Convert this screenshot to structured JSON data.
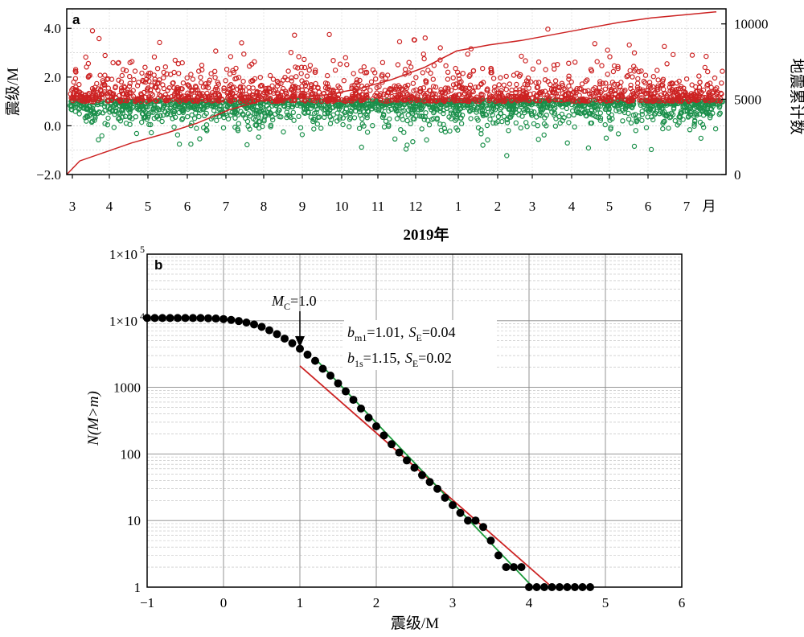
{
  "chart_data": [
    {
      "panel": "a",
      "type": "scatter",
      "xlabel": "2019年",
      "x_tick_labels": [
        "3",
        "4",
        "5",
        "6",
        "7",
        "8",
        "9",
        "10",
        "11",
        "12",
        "1",
        "2",
        "3",
        "4",
        "5",
        "6",
        "7",
        "月"
      ],
      "ylabel_left": "震级/M",
      "ylim_left": [
        -2.0,
        4.8
      ],
      "y_ticks_left": [
        "4.0",
        "2.0",
        "0.0",
        "−2.0"
      ],
      "ylabel_right": "地震累计数",
      "ylim_right": [
        0,
        11000
      ],
      "y_ticks_right": [
        "10000",
        "5000",
        "0"
      ],
      "grid": true,
      "series": [
        {
          "color": "#cc2222",
          "marker": "open-circle",
          "description_range": [
            1.0,
            4.0
          ]
        },
        {
          "color": "#1a8f4a",
          "marker": "open-circle",
          "description_range": [
            -1.6,
            1.0
          ]
        }
      ],
      "cumulative": {
        "color": "#cc2222",
        "x": [
          0,
          0.02,
          0.06,
          0.1,
          0.15,
          0.2,
          0.25,
          0.3,
          0.35,
          0.4,
          0.45,
          0.5,
          0.55,
          0.6,
          0.65,
          0.7,
          0.75,
          0.8,
          0.85,
          0.9,
          0.95,
          1.0
        ],
        "y": [
          0,
          900,
          1500,
          2100,
          2700,
          3400,
          4300,
          4900,
          5100,
          5300,
          5700,
          6300,
          7100,
          8200,
          8600,
          8900,
          9300,
          9700,
          10100,
          10400,
          10600,
          10800
        ]
      }
    },
    {
      "panel": "b",
      "type": "scatter",
      "xlabel": "震级/M",
      "ylabel": "N(M>m)",
      "xlim": [
        -1,
        6
      ],
      "ylim": [
        1,
        100000
      ],
      "yscale": "log",
      "x_ticks": [
        "−1",
        "0",
        "1",
        "2",
        "3",
        "4",
        "5",
        "6"
      ],
      "y_ticks": [
        "1",
        "10",
        "100",
        "1000",
        "1×10",
        "1×10"
      ],
      "y_tick_sups": [
        "4",
        "5"
      ],
      "grid": true,
      "annotation_mc": {
        "text": "=1.0",
        "label": "M",
        "sub": "C",
        "x": 1.0
      },
      "fit_lines": [
        {
          "color": "#cc2222",
          "b": "b",
          "sub": "m1",
          "text": "=1.01,",
          "se_label": "S",
          "se_sub": "E",
          "se_text": "=0.04",
          "x": [
            1.0,
            4.3
          ],
          "y": [
            2100,
            1
          ]
        },
        {
          "color": "#1a9a3a",
          "b": "b",
          "sub": "1s",
          "text": "=1.15,",
          "se_label": "S",
          "se_sub": "E",
          "se_text": "=0.02",
          "x": [
            1.2,
            4.05
          ],
          "y": [
            2700,
            1
          ]
        }
      ],
      "points": {
        "m": [
          -1.0,
          -0.9,
          -0.8,
          -0.7,
          -0.6,
          -0.5,
          -0.4,
          -0.3,
          -0.2,
          -0.1,
          0.0,
          0.1,
          0.2,
          0.3,
          0.4,
          0.5,
          0.6,
          0.7,
          0.8,
          0.9,
          1.0,
          1.1,
          1.2,
          1.3,
          1.4,
          1.5,
          1.6,
          1.7,
          1.8,
          1.9,
          2.0,
          2.1,
          2.2,
          2.3,
          2.4,
          2.5,
          2.6,
          2.7,
          2.8,
          2.9,
          3.0,
          3.1,
          3.2,
          3.3,
          3.4,
          3.5,
          3.6,
          3.7,
          3.8,
          3.9,
          4.0,
          4.1,
          4.2,
          4.3,
          4.4,
          4.5,
          4.6,
          4.7,
          4.8
        ],
        "n": [
          11000,
          11000,
          11000,
          11000,
          11000,
          11000,
          11000,
          11000,
          10900,
          10800,
          10600,
          10300,
          9900,
          9400,
          8800,
          8100,
          7200,
          6300,
          5400,
          4600,
          3800,
          3100,
          2500,
          1900,
          1500,
          1150,
          870,
          650,
          480,
          350,
          260,
          190,
          140,
          105,
          80,
          62,
          48,
          38,
          30,
          22,
          17,
          13,
          10,
          10,
          8,
          5,
          3,
          2,
          2,
          2,
          1,
          1,
          1,
          1,
          1,
          1,
          1,
          1,
          1
        ]
      }
    }
  ]
}
